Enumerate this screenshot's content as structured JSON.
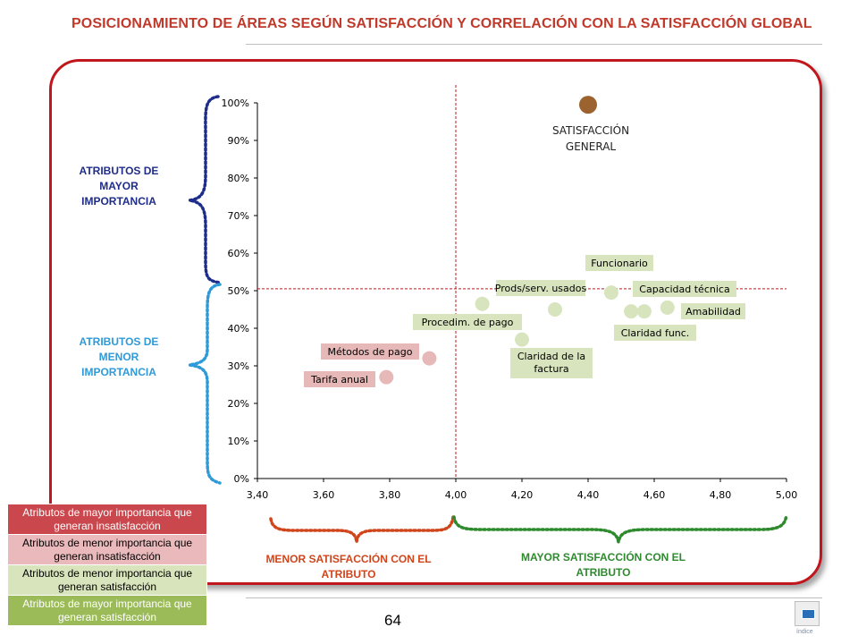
{
  "header": {
    "title": "POSICIONAMIENTO DE ÁREAS SEGÚN SATISFACCIÓN Y CORRELACIÓN CON LA SATISFACCIÓN GLOBAL"
  },
  "labels": {
    "mayor_importancia": "ATRIBUTOS DE MAYOR IMPORTANCIA",
    "menor_importancia": "ATRIBUTOS DE MENOR IMPORTANCIA",
    "menor_satisfaccion": "MENOR SATISFACCIÓN CON EL ATRIBUTO",
    "mayor_satisfaccion": "MAYOR SATISFACCIÓN CON EL ATRIBUTO"
  },
  "legend": {
    "items": [
      {
        "text": "Atributos de mayor importancia que generan insatisfacción",
        "bg": "#c9474d",
        "color": "#ffffff"
      },
      {
        "text": "Atributos de menor importancia que generan insatisfacción",
        "bg": "#e9b9bc",
        "color": "#000000"
      },
      {
        "text": "Atributos de menor importancia que generan satisfacción",
        "bg": "#d8e4bc",
        "color": "#000000"
      },
      {
        "text": "Atributos de mayor importancia que generan satisfacción",
        "bg": "#9bbb59",
        "color": "#ffffff"
      }
    ]
  },
  "footer": {
    "page_number": "64",
    "index_label": "índice"
  },
  "colors": {
    "accent": "#c0171f",
    "mayor_importancia": "#1f2d8a",
    "menor_importancia": "#2e9ad8",
    "menor_satisfaccion": "#d0451b",
    "mayor_satisfaccion": "#2d8a2d",
    "point_green": "#d7e4bd",
    "point_pink": "#e6b8b7",
    "point_global": "#9c6230",
    "label_green_bg": "#d7e4bd",
    "label_pink_bg": "#e6b8b7"
  },
  "chart_data": {
    "type": "scatter",
    "xlim": [
      3.4,
      5.0
    ],
    "ylim": [
      0,
      1.0
    ],
    "x_ticks": [
      "3,40",
      "3,60",
      "3,80",
      "4,00",
      "4,20",
      "4,40",
      "4,60",
      "4,80",
      "5,00"
    ],
    "x_tick_values": [
      3.4,
      3.6,
      3.8,
      4.0,
      4.2,
      4.4,
      4.6,
      4.8,
      5.0
    ],
    "y_ticks": [
      "0%",
      "10%",
      "20%",
      "30%",
      "40%",
      "50%",
      "60%",
      "70%",
      "80%",
      "90%",
      "100%"
    ],
    "y_tick_values": [
      0,
      0.1,
      0.2,
      0.3,
      0.4,
      0.5,
      0.6,
      0.7,
      0.8,
      0.9,
      1.0
    ],
    "x_reference": 4.0,
    "y_reference": 0.505,
    "grid": false,
    "points": [
      {
        "label": "Tarifa anual",
        "x": 3.79,
        "y": 0.27,
        "group": "pink"
      },
      {
        "label": "Métodos de pago",
        "x": 3.92,
        "y": 0.32,
        "group": "pink"
      },
      {
        "label": "Procedim. de pago",
        "x": 4.08,
        "y": 0.465,
        "group": "green"
      },
      {
        "label": "Claridad de la factura",
        "x": 4.2,
        "y": 0.37,
        "group": "green"
      },
      {
        "label": "Prods/serv. usados",
        "x": 4.3,
        "y": 0.45,
        "group": "green"
      },
      {
        "label": "Funcionario",
        "x": 4.47,
        "y": 0.495,
        "group": "green"
      },
      {
        "label": "Claridad func.",
        "x": 4.53,
        "y": 0.445,
        "group": "green"
      },
      {
        "label": "Capacidad técnica",
        "x": 4.57,
        "y": 0.445,
        "group": "green"
      },
      {
        "label": "Amabilidad",
        "x": 4.64,
        "y": 0.455,
        "group": "green"
      },
      {
        "label": "SATISFACCIÓN GENERAL",
        "x": 4.4,
        "y": 0.995,
        "group": "global"
      }
    ]
  }
}
